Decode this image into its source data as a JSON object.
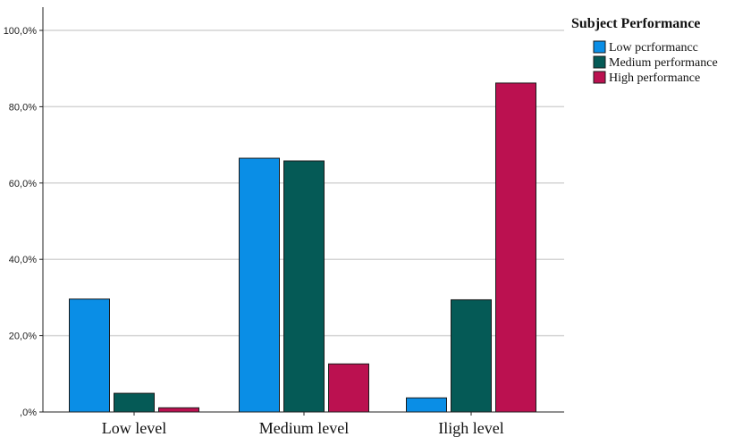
{
  "chart_data": {
    "type": "bar",
    "categories": [
      "Low level",
      "Medium level",
      "Iligh level"
    ],
    "series": [
      {
        "name": "Low pcrformancc",
        "values": [
          29.6,
          66.5,
          3.7
        ],
        "color": "#0a8ee6"
      },
      {
        "name": "Medium performance",
        "values": [
          4.9,
          65.8,
          29.4
        ],
        "color": "#055a56"
      },
      {
        "name": "High performance",
        "values": [
          1.1,
          12.6,
          86.2
        ],
        "color": "#bb1150"
      }
    ],
    "yticks": [
      "100,0%",
      "80,0%",
      "60,0%",
      "40,0%",
      "20,0%",
      ",0%"
    ],
    "ylim": [
      0,
      100
    ],
    "legend_title": "Subject Performance",
    "legend_position": "top-right",
    "grid": true,
    "title": "",
    "xlabel": "",
    "ylabel": ""
  }
}
